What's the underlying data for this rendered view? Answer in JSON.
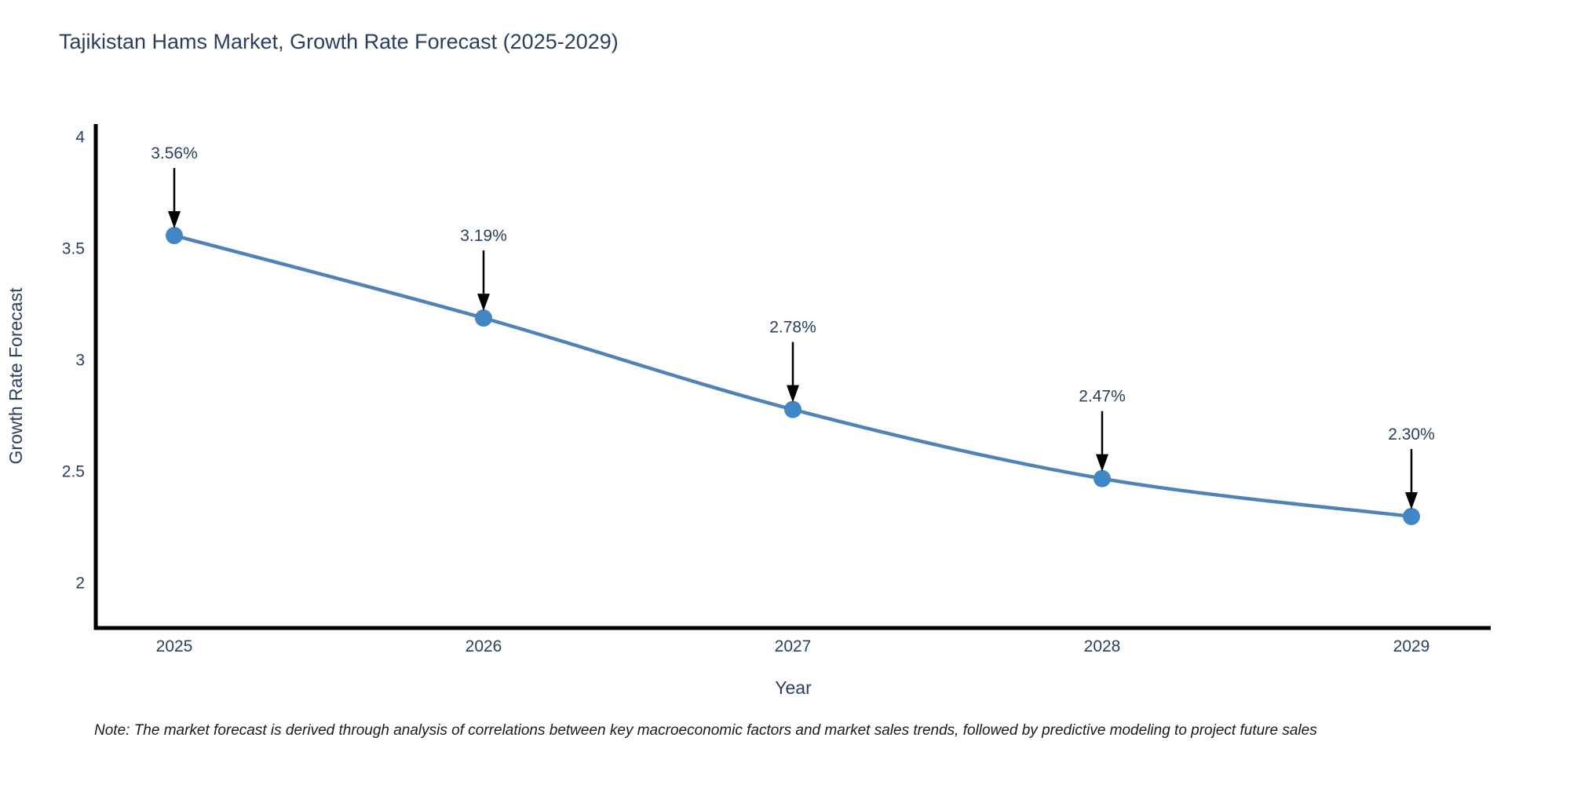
{
  "title": "Tajikistan Hams Market, Growth Rate Forecast (2025-2029)",
  "note": "Note: The market forecast is derived through analysis of correlations between key macroeconomic factors and market sales trends, followed by predictive modeling to project future sales",
  "chart_data": {
    "type": "line",
    "title": "Tajikistan Hams Market, Growth Rate Forecast (2025-2029)",
    "x": [
      "2025",
      "2026",
      "2027",
      "2028",
      "2029"
    ],
    "values": [
      3.56,
      3.19,
      2.78,
      2.47,
      2.3
    ],
    "point_labels": [
      "3.56%",
      "3.19%",
      "2.78%",
      "2.47%",
      "2.30%"
    ],
    "xlabel": "Year",
    "ylabel": "Growth Rate Forecast",
    "ytick_labels": [
      "2",
      "2.5",
      "3",
      "3.5",
      "4"
    ],
    "ytick_values": [
      2,
      2.5,
      3,
      3.5,
      4
    ],
    "ylim": [
      1.8,
      4.06
    ],
    "grid": false,
    "legend": false,
    "marker_size": 11,
    "colors": {
      "line": "#4e84b5",
      "marker": "#4287c5",
      "annotation_arrow": "#000000",
      "annotation_text": "#2a3f5f",
      "axis_line": "#000000",
      "axis_text": "#2a3f5f",
      "title_text": "#2a3f5f",
      "note_text": "#1a1a1a",
      "background": "#ffffff"
    }
  }
}
